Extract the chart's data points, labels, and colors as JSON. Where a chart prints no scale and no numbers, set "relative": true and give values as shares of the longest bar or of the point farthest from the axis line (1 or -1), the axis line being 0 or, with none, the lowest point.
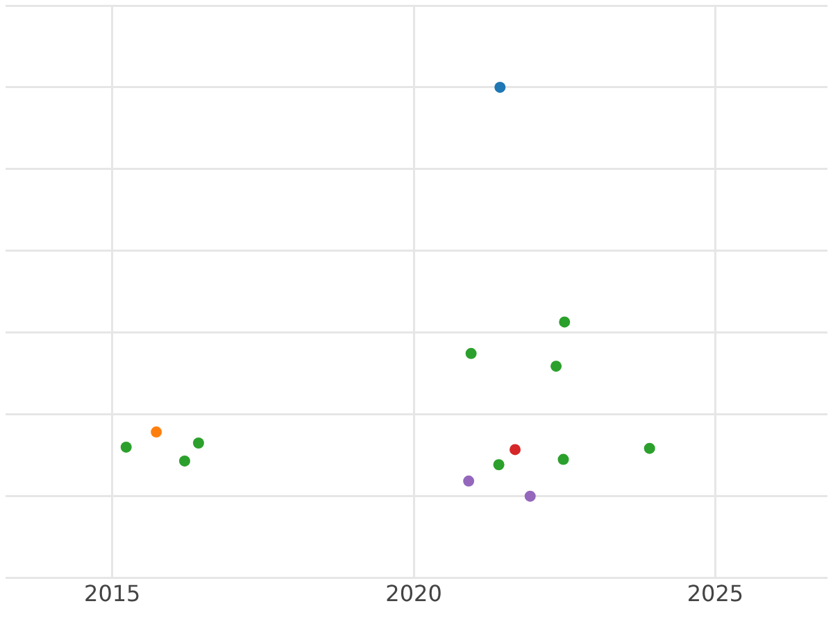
{
  "chart_data": {
    "type": "scatter",
    "relative": true,
    "xlim": [
      2013.23,
      2026.86
    ],
    "xticks": [
      2015,
      2020,
      2025
    ],
    "grid": true,
    "marker": "circle",
    "legend": false,
    "series": [
      {
        "color": "#1f77b4",
        "x": [
          2021.43
        ],
        "values": [
          1
        ]
      },
      {
        "color": "#ff7f0e",
        "x": [
          2015.73
        ],
        "values": [
          0.157
        ]
      },
      {
        "color": "#2ca02c",
        "x": [
          2015.23,
          2016.2,
          2016.43,
          2020.95,
          2022.5,
          2022.36,
          2021.41,
          2022.48,
          2023.91
        ],
        "values": [
          0.12,
          0.086,
          0.13,
          0.349,
          0.426,
          0.318,
          0.077,
          0.09,
          0.117
        ]
      },
      {
        "color": "#d62728",
        "x": [
          2021.68
        ],
        "values": [
          0.114
        ]
      },
      {
        "color": "#9467bd",
        "x": [
          2020.91,
          2021.93
        ],
        "values": [
          0.037,
          0
        ]
      }
    ]
  }
}
